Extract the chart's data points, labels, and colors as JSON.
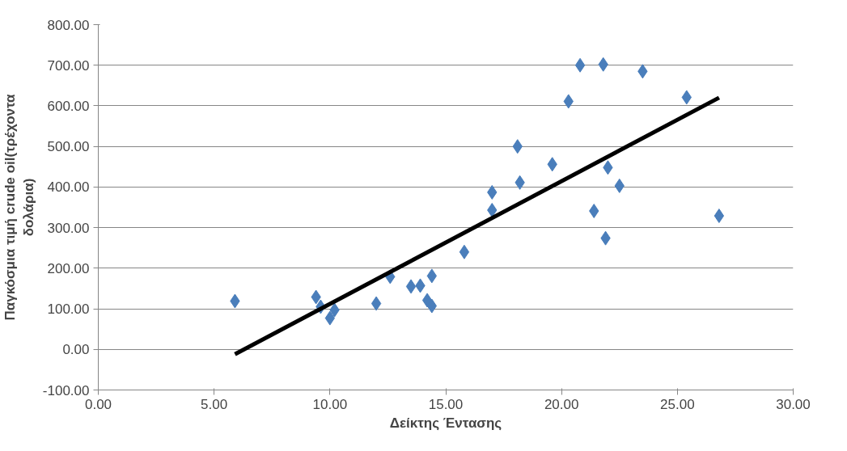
{
  "chart_data": {
    "type": "scatter",
    "xlabel": "Δείκτης Έντασης",
    "ylabel": "Παγκόσμια τιμή crude oil(τρέχοντα δολάρια)",
    "xlim": [
      0,
      30
    ],
    "xticks": [
      {
        "value": 0,
        "label": "0.00"
      },
      {
        "value": 5,
        "label": "5.00"
      },
      {
        "value": 10,
        "label": "10.00"
      },
      {
        "value": 15,
        "label": "15.00"
      },
      {
        "value": 20,
        "label": "20.00"
      },
      {
        "value": 25,
        "label": "25.00"
      },
      {
        "value": 30,
        "label": "30.00"
      }
    ],
    "ylim": [
      -100,
      800
    ],
    "yticks": [
      {
        "value": -100,
        "label": "-100.00"
      },
      {
        "value": 0,
        "label": "0.00"
      },
      {
        "value": 100,
        "label": "100.00"
      },
      {
        "value": 200,
        "label": "200.00"
      },
      {
        "value": 300,
        "label": "300.00"
      },
      {
        "value": 400,
        "label": "400.00"
      },
      {
        "value": 500,
        "label": "500.00"
      },
      {
        "value": 600,
        "label": "600.00"
      },
      {
        "value": 700,
        "label": "700.00"
      },
      {
        "value": 800,
        "label": "800.00"
      }
    ],
    "grid": "y",
    "series": [
      {
        "marker": "diamond",
        "color": "#4a7ebb",
        "x": [
          5.9,
          9.4,
          9.6,
          10.0,
          10.2,
          12.0,
          12.6,
          13.5,
          13.9,
          14.2,
          14.4,
          14.4,
          15.8,
          17.0,
          17.0,
          18.1,
          18.2,
          19.6,
          20.3,
          20.8,
          21.8,
          21.4,
          21.9,
          22.0,
          22.5,
          23.5,
          25.4,
          26.8
        ],
        "values": [
          119,
          129,
          105,
          77,
          97,
          113,
          179,
          155,
          157,
          121,
          107,
          181,
          240,
          387,
          343,
          500,
          411,
          456,
          611,
          700,
          702,
          341,
          274,
          448,
          403,
          685,
          621,
          329
        ]
      },
      {
        "type": "line",
        "color": "#000000",
        "x": [
          5.9,
          26.8
        ],
        "values": [
          -12,
          620
        ]
      }
    ]
  }
}
